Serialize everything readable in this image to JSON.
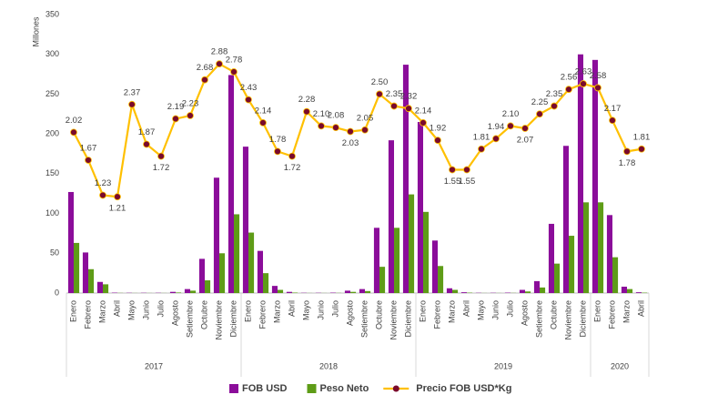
{
  "chart_data": {
    "type": "bar-line",
    "y_label": "Millones",
    "categories": [
      "Enero",
      "Febrero",
      "Marzo",
      "Abril",
      "Mayo",
      "Junio",
      "Julio",
      "Agosto",
      "Setiembre",
      "Octubre",
      "Noviembre",
      "Diciembre",
      "Enero",
      "Febrero",
      "Marzo",
      "Abril",
      "Mayo",
      "Junio",
      "Julio",
      "Agosto",
      "Setiembre",
      "Octubre",
      "Noviembre",
      "Diciembre",
      "Enero",
      "Febrero",
      "Marzo",
      "Abril",
      "Mayo",
      "Junio",
      "Julio",
      "Agosto",
      "Setiembre",
      "Octubre",
      "Noviembre",
      "Diciembre",
      "Enero",
      "Febrero",
      "Marzo",
      "Abril"
    ],
    "years": [
      "2017",
      "2018",
      "2019",
      "2020"
    ],
    "ylim": [
      0,
      350
    ],
    "yticks": [
      0,
      50,
      100,
      150,
      200,
      250,
      300,
      350
    ],
    "y2lim": [
      0,
      3.5
    ],
    "grid": false,
    "legend": "bottom",
    "series": [
      {
        "name": "FOB USD",
        "type": "bar",
        "color": "#8b0d9a",
        "values": [
          127,
          51,
          14,
          0.5,
          0.3,
          0.3,
          0.3,
          1.5,
          5,
          43,
          145,
          274,
          184,
          53,
          9,
          1.5,
          0.3,
          0.3,
          0.5,
          3,
          5,
          82,
          192,
          287,
          215,
          66,
          6,
          1,
          0.3,
          0.3,
          0.5,
          4,
          15,
          87,
          185,
          300,
          293,
          98,
          8,
          1
        ]
      },
      {
        "name": "Peso Neto",
        "type": "bar",
        "color": "#5e9c17",
        "values": [
          63,
          30,
          11,
          0.2,
          0.1,
          0.1,
          0.1,
          0.7,
          3,
          16,
          50,
          99,
          76,
          25,
          4,
          0.6,
          0.1,
          0.1,
          0.2,
          1.5,
          2.5,
          33,
          82,
          124,
          102,
          34,
          4,
          0.5,
          0.1,
          0.1,
          0.2,
          2,
          7,
          37,
          72,
          114,
          114,
          45,
          5,
          0.5
        ]
      },
      {
        "name": "Precio FOB USD*Kg",
        "type": "line",
        "axis": "y2",
        "color": "#ffc000",
        "marker_color": "#7a0a2c",
        "values": [
          2.02,
          1.67,
          1.23,
          1.21,
          2.37,
          1.87,
          1.72,
          2.19,
          2.23,
          2.68,
          2.88,
          2.78,
          2.43,
          2.14,
          1.78,
          1.72,
          2.28,
          2.1,
          2.08,
          2.03,
          2.05,
          2.5,
          2.35,
          2.32,
          2.14,
          1.92,
          1.55,
          1.55,
          1.81,
          1.94,
          2.1,
          2.07,
          2.25,
          2.35,
          2.56,
          2.63,
          2.58,
          2.17,
          1.78,
          1.81
        ],
        "value_labels": [
          "2.02",
          "1.67",
          "1.23",
          "1.21",
          "2.37",
          "1.87",
          "1.72",
          "2.19",
          "2.23",
          "2.68",
          "2.88",
          "2.78",
          "2.43",
          "2.14",
          "1.78",
          "1.72",
          "2.28",
          "2.10",
          "2.08",
          "2.03",
          "2.05",
          "2.50",
          "2.35",
          "2.32",
          "2.14",
          "1.92",
          "1.55",
          "1.55",
          "1.81",
          "1.94",
          "2.10",
          "2.07",
          "2.25",
          "2.35",
          "2.56",
          "2.63",
          "2.58",
          "2.17",
          "1.78",
          "1.81"
        ]
      }
    ]
  }
}
